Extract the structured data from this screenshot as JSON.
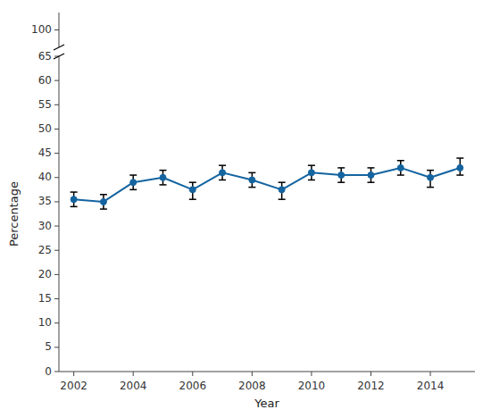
{
  "chart_data": {
    "type": "line",
    "x": [
      2002,
      2003,
      2004,
      2005,
      2006,
      2007,
      2008,
      2009,
      2010,
      2011,
      2012,
      2013,
      2014,
      2015
    ],
    "values": [
      35.5,
      35.0,
      39.0,
      40.0,
      37.5,
      41.0,
      39.5,
      37.5,
      41.0,
      40.5,
      40.5,
      42.0,
      40.0,
      42.0
    ],
    "err_lower": [
      1.5,
      1.5,
      1.5,
      1.5,
      2.0,
      1.5,
      1.5,
      2.0,
      1.5,
      1.5,
      1.5,
      1.5,
      2.0,
      1.5
    ],
    "err_upper": [
      1.5,
      1.5,
      1.5,
      1.5,
      1.5,
      1.5,
      1.5,
      1.5,
      1.5,
      1.5,
      1.5,
      1.5,
      1.5,
      2.0
    ],
    "color": "#1464A0",
    "error_color": "black",
    "marker": "circle",
    "xlabel": "Year",
    "ylabel": "Percentage",
    "xlim": [
      2001.5,
      2015.5
    ],
    "xticks": [
      2002,
      2004,
      2006,
      2008,
      2010,
      2012,
      2014
    ],
    "ylim": [
      0,
      65
    ],
    "yticks": [
      0,
      5,
      10,
      15,
      20,
      25,
      30,
      35,
      40,
      45,
      50,
      55,
      60,
      65
    ],
    "ylim_upper": [
      98,
      102
    ],
    "yticks_upper": [
      100
    ],
    "grid": false
  }
}
